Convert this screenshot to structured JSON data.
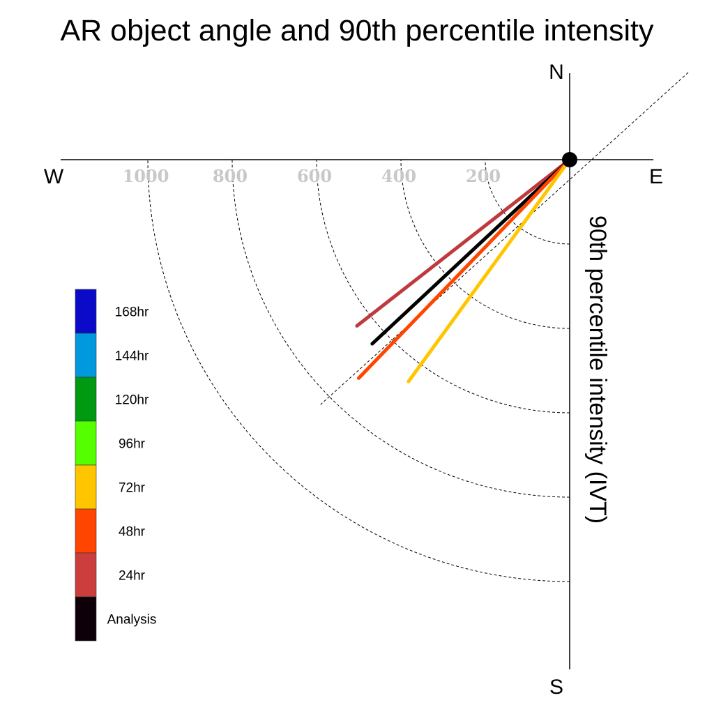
{
  "chart_data": {
    "type": "polar-vector",
    "title": "AR object angle and 90th percentile intensity",
    "ylabel": "90th percentile intensity (IVT)",
    "compass": {
      "north": "N",
      "south": "S",
      "east": "E",
      "west": "W"
    },
    "radial_ticks": [
      "200",
      "400",
      "600",
      "800",
      "1000"
    ],
    "radial_tick_values": [
      200,
      400,
      600,
      800,
      1000
    ],
    "rlim": [
      0,
      1200
    ],
    "grid": "dashed arcs every 200 in the SW quadrant, dashed diagonal NE-SW reference line",
    "legend_position": "left",
    "legend": [
      {
        "label": "168hr",
        "color": "#0a0ac8"
      },
      {
        "label": "144hr",
        "color": "#0099dd"
      },
      {
        "label": "120hr",
        "color": "#009a12"
      },
      {
        "label": "96hr",
        "color": "#55ff00"
      },
      {
        "label": "72hr",
        "color": "#ffc600"
      },
      {
        "label": "48hr",
        "color": "#ff4500"
      },
      {
        "label": "24hr",
        "color": "#cc3e3e"
      },
      {
        "label": "Analysis",
        "color": "#0d0008"
      }
    ],
    "series": [
      {
        "name": "24hr",
        "color": "#c0393e",
        "angle_deg": 232,
        "intensity": 640
      },
      {
        "name": "Analysis",
        "color": "#000000",
        "angle_deg": 227,
        "intensity": 640
      },
      {
        "name": "48hr",
        "color": "#ff4500",
        "angle_deg": 224,
        "intensity": 720
      },
      {
        "name": "72hr",
        "color": "#ffc600",
        "angle_deg": 216,
        "intensity": 650
      }
    ]
  }
}
